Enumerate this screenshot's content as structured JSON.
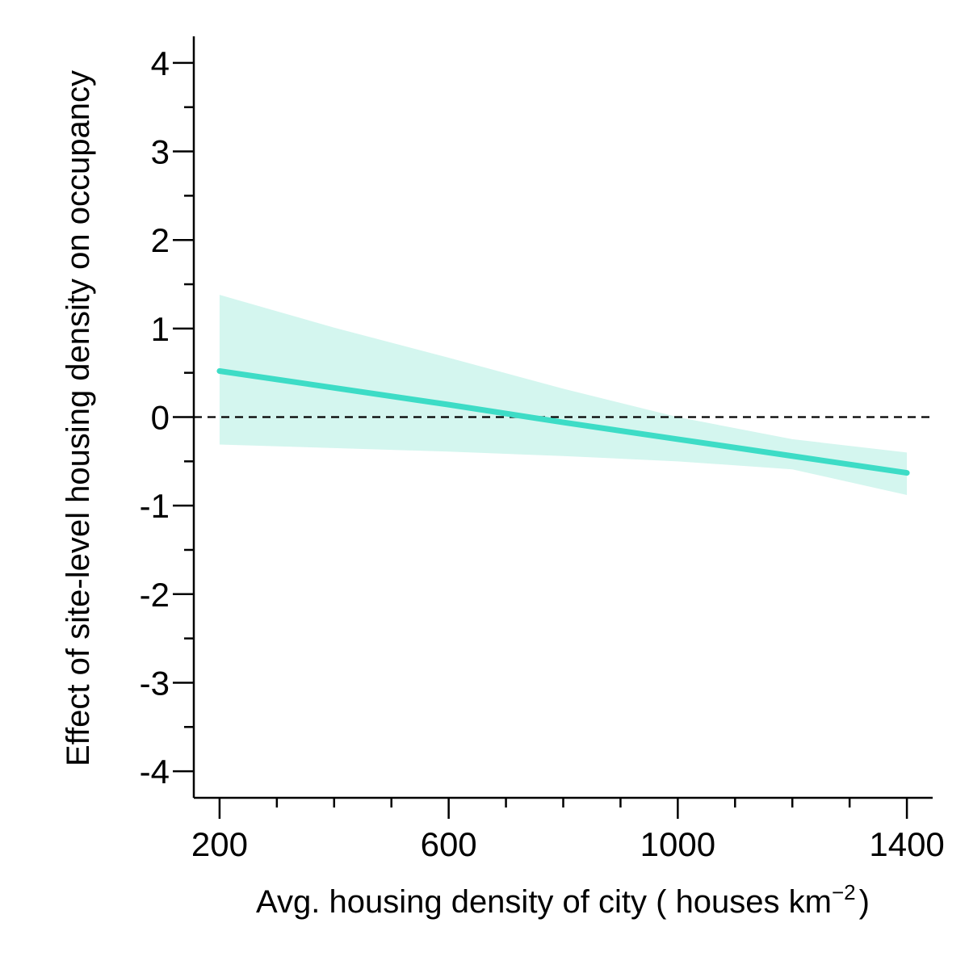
{
  "chart_data": {
    "type": "line",
    "xlabel": "Avg. housing density of city ( houses  km",
    "xlabel_superscript": "−2",
    "xlabel_close": ")",
    "ylabel": "Effect of site-level housing density on occupancy",
    "xlim": [
      155,
      1445
    ],
    "ylim": [
      -4.3,
      4.3
    ],
    "x_major_ticks": [
      200,
      600,
      1000,
      1400
    ],
    "x_tick_labels": [
      "200",
      "600",
      "1000",
      "1400"
    ],
    "x_minor_ticks": [
      300,
      400,
      500,
      700,
      800,
      900,
      1100,
      1200,
      1300
    ],
    "y_major_ticks": [
      -4,
      -3,
      -2,
      -1,
      0,
      1,
      2,
      3,
      4
    ],
    "y_tick_labels": [
      "-4",
      "-3",
      "-2",
      "-1",
      "0",
      "1",
      "2",
      "3",
      "4"
    ],
    "y_minor_ticks": [
      -3.5,
      -2.5,
      -1.5,
      -0.5,
      0.5,
      1.5,
      2.5,
      3.5
    ],
    "reference_line": {
      "y": 0,
      "style": "dashed"
    },
    "colors": {
      "line": "#3ddcc6",
      "band": "#d4f6ef",
      "axis": "#000000"
    },
    "series": [
      {
        "x": [
          200,
          400,
          600,
          800,
          1000,
          1200,
          1400
        ],
        "y": [
          0.52,
          0.33,
          0.14,
          -0.06,
          -0.25,
          -0.44,
          -0.63
        ],
        "lower": [
          -0.31,
          -0.35,
          -0.39,
          -0.44,
          -0.5,
          -0.59,
          -0.88
        ],
        "upper": [
          1.38,
          1.01,
          0.67,
          0.32,
          0.0,
          -0.25,
          -0.4
        ]
      }
    ]
  }
}
